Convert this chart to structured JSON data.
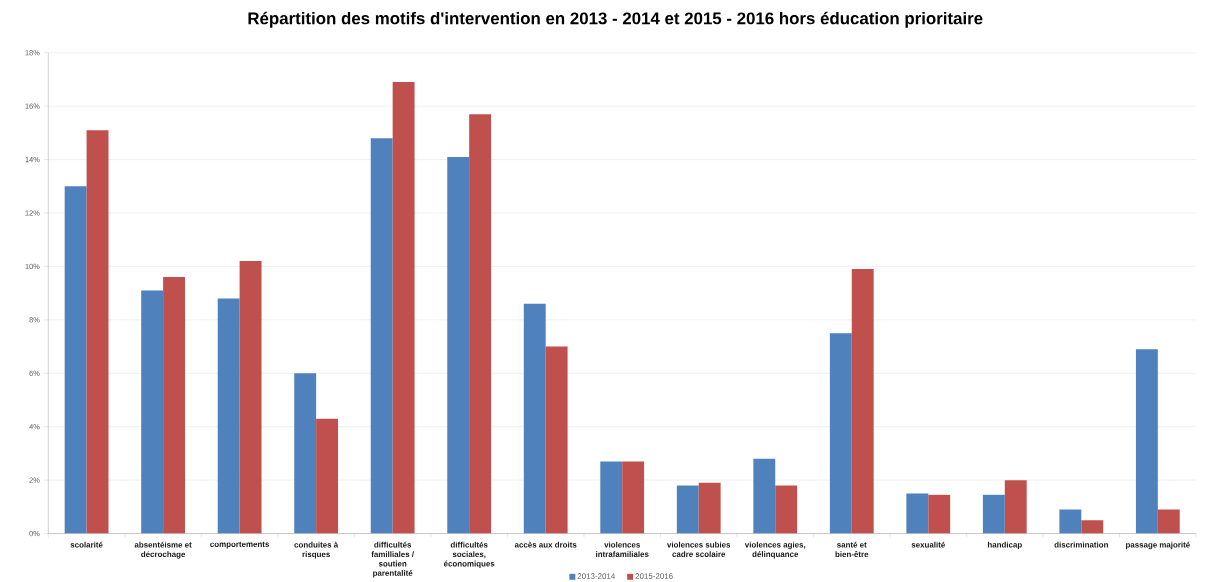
{
  "chart_data": {
    "type": "bar",
    "title": "Répartition des motifs d'intervention en 2013 - 2014 et 2015 - 2016 hors éducation prioritaire",
    "categories": [
      "scolarité",
      "absentéisme et décrochage",
      "comportements",
      "conduites à risques",
      "difficultés familliales / soutien parentalité",
      "difficultés sociales, économiques",
      "accès aux droits",
      "violences intrafamiliales",
      "violences subies cadre scolaire",
      "violences agies, délinquance",
      "santé et bien-être",
      "sexualité",
      "handicap",
      "discrimination",
      "passage majorité"
    ],
    "series": [
      {
        "name": "2013-2014",
        "color": "#4f81bd",
        "values": [
          13.0,
          9.1,
          8.8,
          6.0,
          14.8,
          14.1,
          8.6,
          2.7,
          1.8,
          2.8,
          7.5,
          1.5,
          1.45,
          0.9,
          6.9
        ]
      },
      {
        "name": "2015-2016",
        "color": "#c0504d",
        "values": [
          15.1,
          9.6,
          10.2,
          4.3,
          16.9,
          15.7,
          7.0,
          2.7,
          1.9,
          1.8,
          9.9,
          1.45,
          2.0,
          0.5,
          0.9
        ]
      }
    ],
    "ylim": [
      0,
      18
    ],
    "yticks": [
      {
        "value": 0,
        "label": "0%"
      },
      {
        "value": 2,
        "label": "2%"
      },
      {
        "value": 4,
        "label": "4%"
      },
      {
        "value": 6,
        "label": "6%"
      },
      {
        "value": 8,
        "label": "8%"
      },
      {
        "value": 10,
        "label": "10%"
      },
      {
        "value": 12,
        "label": "12%"
      },
      {
        "value": 14,
        "label": "14%"
      },
      {
        "value": 16,
        "label": "16%"
      },
      {
        "value": 18,
        "label": "18%"
      }
    ],
    "grid": "y",
    "legend": "bottom"
  }
}
